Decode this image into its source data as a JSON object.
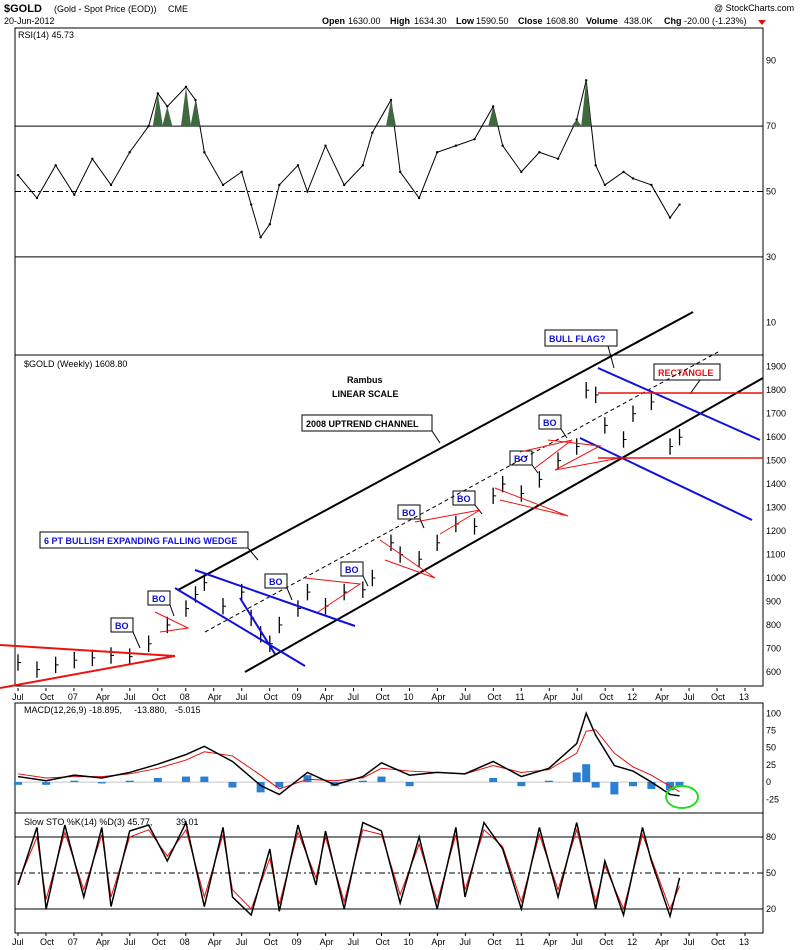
{
  "header": {
    "symbol": "$GOLD",
    "description": "(Gold - Spot Price (EOD))",
    "exchange": "CME",
    "date": "20-Jun-2012",
    "open_label": "Open",
    "open": "1630.00",
    "high_label": "High",
    "high": "1634.30",
    "low_label": "Low",
    "low": "1590.50",
    "close_label": "Close",
    "close": "1608.80",
    "volume_label": "Volume",
    "volume": "438.0K",
    "chg_label": "Chg",
    "chg": "-20.00 (-1.23%)",
    "copyright": "@ StockCharts.com"
  },
  "panels": {
    "rsi_label": "RSI(14) 45.73",
    "price_label": "$GOLD (Weekly) 1608.80",
    "macd_label_a": "MACD(12,26,9) -18.895,",
    "macd_label_b": "-13.880,",
    "macd_label_c": "-5.015",
    "sto_label_a": "Slow STO %K(14) %D(3) 45.77,",
    "sto_label_b": "39.01"
  },
  "annotations": {
    "author": "Rambus",
    "scale": "LINEAR SCALE",
    "channel": "2008 UPTREND CHANNEL",
    "wedge": "6 PT BULLISH EXPANDING FALLING WEDGE",
    "bull_flag": "BULL FLAG?",
    "rectangle": "RECTANGLE",
    "breakout": "BO"
  },
  "colors": {
    "price_bar": "#000000",
    "trendline_black": "#000000",
    "trendline_blue": "#1010dd",
    "trendline_red": "#ee1111",
    "rsi_fill": "#3f6a3f",
    "macd_signal": "#e01010",
    "macd_hist": "#2a7fd4",
    "highlight_circle": "#22dd22"
  },
  "chart_data": [
    {
      "type": "line",
      "name": "RSI",
      "yticks": [
        90,
        70,
        50,
        30,
        10
      ],
      "ylim": [
        0,
        100
      ],
      "reference_lines": [
        70,
        50,
        30
      ],
      "x": [
        "2006-07",
        "2006-09",
        "2006-11",
        "2007-01",
        "2007-03",
        "2007-05",
        "2007-07",
        "2007-09",
        "2007-10",
        "2007-11",
        "2008-01",
        "2008-02",
        "2008-03",
        "2008-05",
        "2008-07",
        "2008-08",
        "2008-09",
        "2008-10",
        "2008-11",
        "2009-01",
        "2009-02",
        "2009-04",
        "2009-06",
        "2009-08",
        "2009-09",
        "2009-11",
        "2009-12",
        "2010-02",
        "2010-04",
        "2010-06",
        "2010-08",
        "2010-10",
        "2010-11",
        "2011-01",
        "2011-03",
        "2011-05",
        "2011-07",
        "2011-08",
        "2011-09",
        "2011-10",
        "2011-12",
        "2012-01",
        "2012-03",
        "2012-05",
        "2012-06"
      ],
      "values": [
        55,
        48,
        58,
        49,
        60,
        52,
        62,
        70,
        80,
        76,
        82,
        78,
        62,
        52,
        56,
        46,
        36,
        40,
        52,
        58,
        50,
        64,
        52,
        58,
        68,
        78,
        56,
        48,
        62,
        64,
        66,
        76,
        64,
        56,
        62,
        60,
        72,
        84,
        58,
        52,
        56,
        54,
        52,
        42,
        46
      ]
    },
    {
      "type": "bar",
      "name": "Gold weekly price",
      "yticks": [
        600,
        700,
        800,
        900,
        1000,
        1100,
        1200,
        1300,
        1400,
        1500,
        1600,
        1700,
        1800,
        1900
      ],
      "ylim": [
        540,
        1950
      ],
      "x": [
        "2006-07",
        "2006-09",
        "2006-11",
        "2007-01",
        "2007-03",
        "2007-05",
        "2007-07",
        "2007-09",
        "2007-11",
        "2008-01",
        "2008-02",
        "2008-03",
        "2008-05",
        "2008-07",
        "2008-08",
        "2008-09",
        "2008-10",
        "2008-11",
        "2009-01",
        "2009-02",
        "2009-04",
        "2009-06",
        "2009-08",
        "2009-09",
        "2009-11",
        "2009-12",
        "2010-02",
        "2010-04",
        "2010-06",
        "2010-08",
        "2010-10",
        "2010-11",
        "2011-01",
        "2011-03",
        "2011-05",
        "2011-07",
        "2011-08",
        "2011-09",
        "2011-10",
        "2011-12",
        "2012-01",
        "2012-03",
        "2012-05",
        "2012-06"
      ],
      "values": [
        640,
        610,
        630,
        650,
        660,
        670,
        665,
        720,
        800,
        870,
        930,
        980,
        880,
        940,
        830,
        760,
        720,
        800,
        870,
        940,
        880,
        940,
        950,
        1000,
        1150,
        1100,
        1080,
        1150,
        1230,
        1220,
        1350,
        1400,
        1360,
        1420,
        1500,
        1560,
        1800,
        1780,
        1650,
        1590,
        1700,
        1750,
        1560,
        1600
      ]
    },
    {
      "type": "line",
      "name": "MACD",
      "yticks": [
        100,
        75,
        50,
        25,
        0,
        -25
      ],
      "ylim": [
        -45,
        115
      ],
      "series_names": [
        "MACD",
        "signal",
        "histogram"
      ],
      "x": [
        "2006-07",
        "2006-10",
        "2007-01",
        "2007-04",
        "2007-07",
        "2007-10",
        "2008-01",
        "2008-03",
        "2008-06",
        "2008-09",
        "2008-11",
        "2009-02",
        "2009-05",
        "2009-08",
        "2009-10",
        "2010-01",
        "2010-04",
        "2010-07",
        "2010-10",
        "2011-01",
        "2011-04",
        "2011-07",
        "2011-08",
        "2011-09",
        "2011-11",
        "2012-01",
        "2012-03",
        "2012-05",
        "2012-06"
      ],
      "macd": [
        8,
        2,
        10,
        6,
        14,
        26,
        40,
        52,
        30,
        -5,
        -18,
        14,
        -4,
        8,
        28,
        10,
        14,
        12,
        30,
        8,
        20,
        56,
        100,
        68,
        24,
        16,
        0,
        -18,
        -20
      ],
      "signal": [
        12,
        6,
        8,
        8,
        12,
        20,
        32,
        44,
        38,
        10,
        -10,
        4,
        2,
        6,
        20,
        16,
        14,
        12,
        24,
        14,
        18,
        42,
        74,
        76,
        42,
        22,
        10,
        -6,
        -14
      ]
    },
    {
      "type": "line",
      "name": "Slow Stochastic",
      "yticks": [
        80,
        50,
        20
      ],
      "ylim": [
        0,
        100
      ],
      "series_names": [
        "%K",
        "%D"
      ],
      "x": [
        "2006-07",
        "2006-09",
        "2006-10",
        "2006-12",
        "2007-02",
        "2007-04",
        "2007-05",
        "2007-07",
        "2007-09",
        "2007-11",
        "2008-01",
        "2008-03",
        "2008-05",
        "2008-06",
        "2008-08",
        "2008-10",
        "2008-11",
        "2009-01",
        "2009-03",
        "2009-04",
        "2009-06",
        "2009-08",
        "2009-10",
        "2009-12",
        "2010-02",
        "2010-04",
        "2010-06",
        "2010-07",
        "2010-09",
        "2010-11",
        "2011-01",
        "2011-03",
        "2011-05",
        "2011-07",
        "2011-09",
        "2011-10",
        "2011-12",
        "2012-02",
        "2012-03",
        "2012-05",
        "2012-06"
      ],
      "k": [
        40,
        88,
        20,
        90,
        30,
        88,
        22,
        85,
        90,
        60,
        92,
        22,
        88,
        30,
        15,
        70,
        18,
        90,
        40,
        85,
        20,
        92,
        85,
        25,
        80,
        20,
        88,
        30,
        92,
        70,
        20,
        88,
        30,
        92,
        20,
        60,
        15,
        88,
        60,
        14,
        46
      ],
      "d": [
        42,
        80,
        28,
        84,
        36,
        82,
        30,
        80,
        86,
        64,
        86,
        30,
        82,
        36,
        20,
        62,
        24,
        84,
        46,
        80,
        26,
        86,
        82,
        32,
        74,
        26,
        82,
        36,
        86,
        72,
        26,
        82,
        36,
        86,
        26,
        56,
        20,
        82,
        62,
        20,
        39
      ]
    }
  ],
  "x_axis_labels": [
    "Jul",
    "Oct",
    "07",
    "Apr",
    "Jul",
    "Oct",
    "08",
    "Apr",
    "Jul",
    "Oct",
    "09",
    "Apr",
    "Jul",
    "Oct",
    "10",
    "Apr",
    "Jul",
    "Oct",
    "11",
    "Apr",
    "Jul",
    "Oct",
    "12",
    "Apr",
    "Jul",
    "Oct",
    "13"
  ]
}
